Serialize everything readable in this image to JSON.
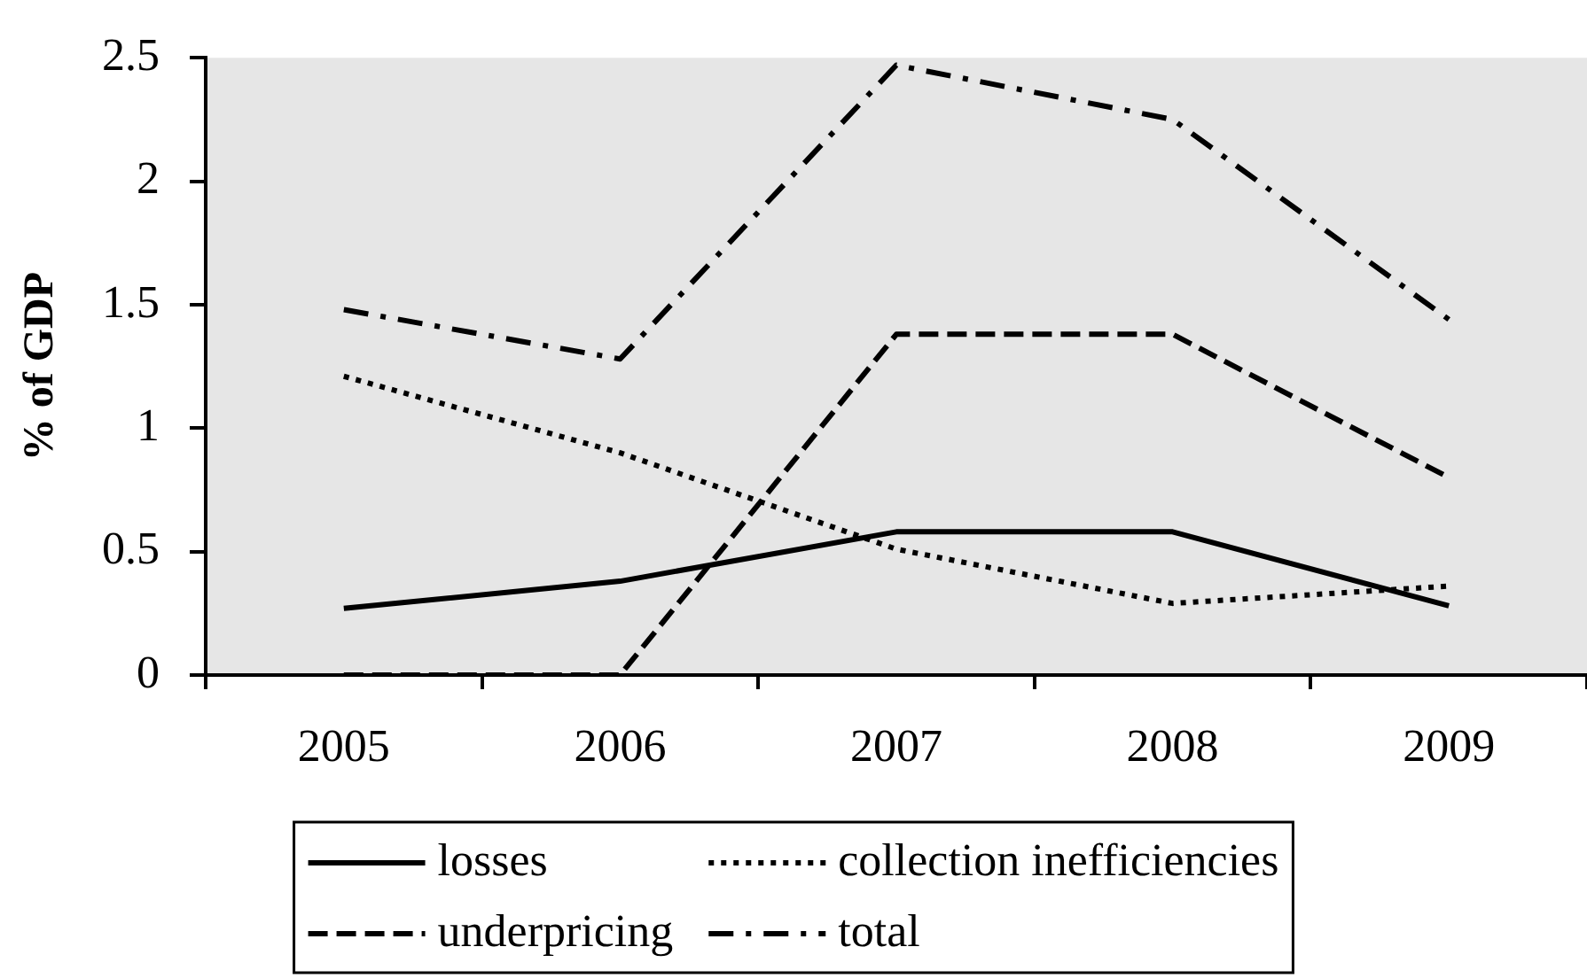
{
  "chart_data": {
    "type": "line",
    "ylabel": "% of GDP",
    "categories": [
      "2005",
      "2006",
      "2007",
      "2008",
      "2009"
    ],
    "series": [
      {
        "name": "losses",
        "color": "#000000",
        "line_style": "solid",
        "values": [
          0.27,
          0.38,
          0.58,
          0.58,
          0.28
        ]
      },
      {
        "name": "collection inefficiencies",
        "color": "#000000",
        "line_style": "dotted",
        "values": [
          1.21,
          0.9,
          0.51,
          0.29,
          0.36
        ]
      },
      {
        "name": "underpricing",
        "color": "#000000",
        "line_style": "dashed",
        "values": [
          0,
          0,
          1.38,
          1.38,
          0.8
        ]
      },
      {
        "name": "total",
        "color": "#000000",
        "line_style": "dashdot",
        "values": [
          1.48,
          1.28,
          2.47,
          2.25,
          1.44
        ]
      }
    ],
    "ylim": [
      0,
      2.5
    ],
    "yticks": [
      0,
      0.5,
      1,
      1.5,
      2,
      2.5
    ],
    "legend": "bottom",
    "marker": "none"
  }
}
